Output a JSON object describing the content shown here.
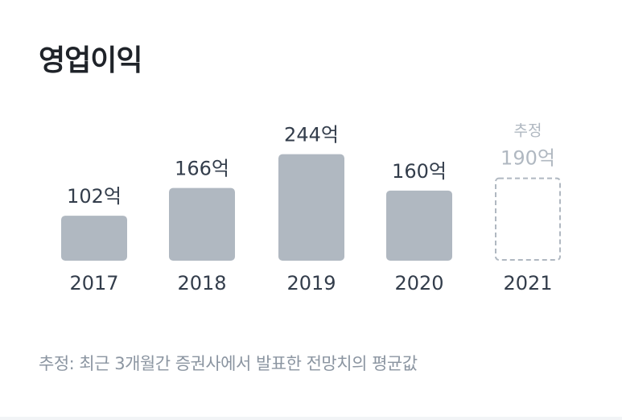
{
  "title": "영업이익",
  "footnote": "추정: 최근 3개월간 증권사에서 발표한 전망치의 평균값",
  "colors": {
    "bar": "#b0b8c1",
    "label": "#333d4b",
    "estimate": "#b0b8c1"
  },
  "chart_data": {
    "type": "bar",
    "title": "영업이익",
    "categories": [
      "2017",
      "2018",
      "2019",
      "2020",
      "2021"
    ],
    "values": [
      102,
      166,
      244,
      160,
      190
    ],
    "value_labels": [
      "102억",
      "166억",
      "244억",
      "160억",
      "190억"
    ],
    "estimated": [
      false,
      false,
      false,
      false,
      true
    ],
    "estimate_label": "추정",
    "unit": "억",
    "grid": false,
    "legend": "none"
  }
}
